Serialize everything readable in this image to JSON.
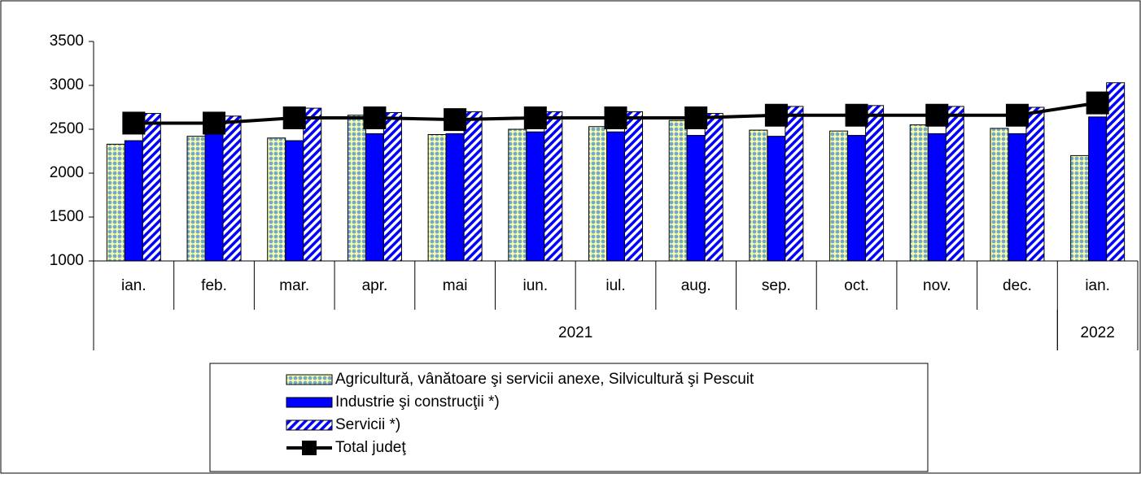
{
  "chart_data": {
    "type": "bar",
    "categories": [
      "ian.",
      "feb.",
      "mar.",
      "apr.",
      "mai",
      "iun.",
      "iul.",
      "aug.",
      "sep.",
      "oct.",
      "nov.",
      "dec.",
      "ian."
    ],
    "category_groups": [
      {
        "label": "2021",
        "count": 12
      },
      {
        "label": "2022",
        "count": 1
      }
    ],
    "series": [
      {
        "name": "Agricultură, vânătoare şi servicii anexe, Silvicultură şi Pescuit",
        "type": "bar",
        "color": "#6fa8dc",
        "pattern": "dots",
        "values": [
          2330,
          2420,
          2400,
          2660,
          2440,
          2500,
          2530,
          2600,
          2490,
          2480,
          2550,
          2510,
          2200
        ]
      },
      {
        "name": "Industrie şi construcţii *)",
        "type": "bar",
        "color": "#0000ff",
        "pattern": "solid",
        "values": [
          2370,
          2450,
          2370,
          2450,
          2450,
          2470,
          2470,
          2430,
          2420,
          2430,
          2450,
          2450,
          2640
        ]
      },
      {
        "name": "Servicii *)",
        "type": "bar",
        "color": "#0000ff",
        "pattern": "stripes",
        "values": [
          2680,
          2650,
          2740,
          2690,
          2700,
          2700,
          2700,
          2680,
          2760,
          2770,
          2760,
          2750,
          3030
        ]
      },
      {
        "name": "Total judeţ",
        "type": "line",
        "color": "#000000",
        "values": [
          2570,
          2570,
          2630,
          2630,
          2610,
          2630,
          2630,
          2630,
          2660,
          2660,
          2660,
          2660,
          2800
        ]
      }
    ],
    "ylim": [
      1000,
      3500
    ],
    "yticks": [
      1000,
      1500,
      2000,
      2500,
      3000,
      3500
    ],
    "grid": false,
    "legend": "bottom"
  }
}
